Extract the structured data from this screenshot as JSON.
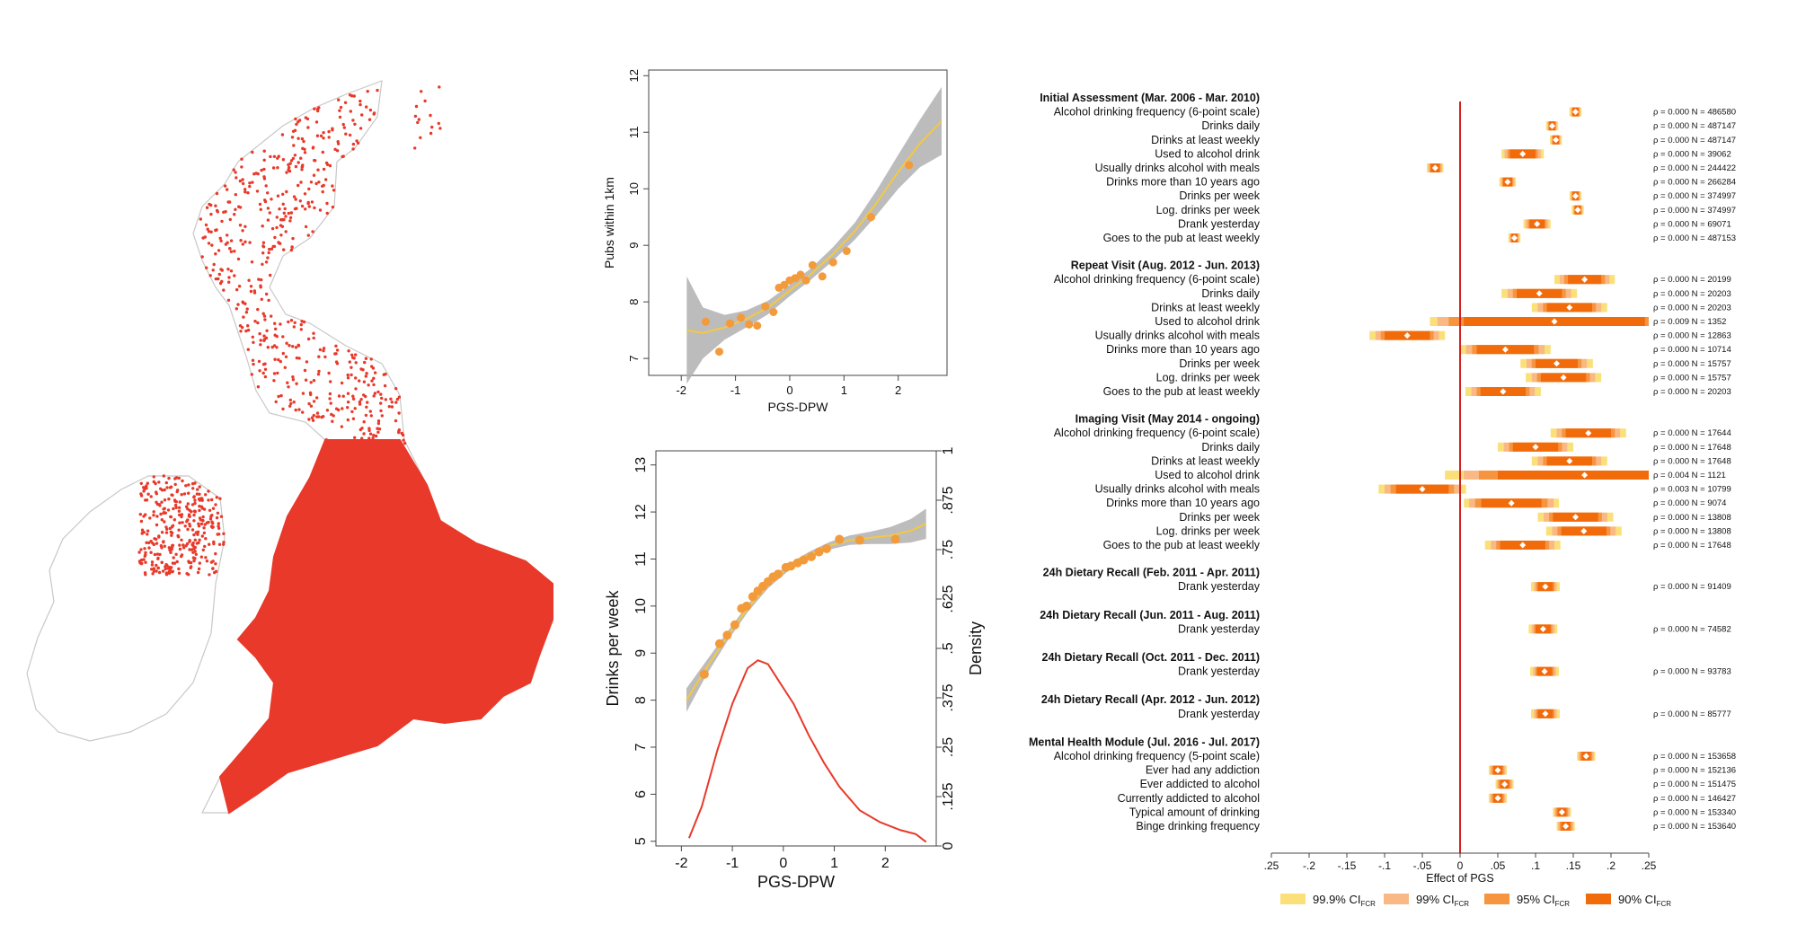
{
  "colors": {
    "map_dots": "#e8392a",
    "map_outline": "#c8c8c8",
    "scatter_points": "#f39a3a",
    "fit_line": "#f4c842",
    "ci_band": "#b0b0b0",
    "density_line": "#e8392a",
    "zero_line": "#d62020",
    "ci_999": "#fbe07a",
    "ci_99": "#f9b884",
    "ci_95": "#f79440",
    "ci_90": "#f26b0b"
  },
  "chart_data": [
    {
      "id": "map",
      "type": "scatter",
      "title": "",
      "description_points": "geographic pub locations (synthetic)"
    },
    {
      "id": "pubs",
      "type": "scatter",
      "xlabel": "PGS-DPW",
      "ylabel": "Pubs within 1km",
      "xlim": [
        -2.6,
        2.9
      ],
      "ylim": [
        6.7,
        12.1
      ],
      "xticks": [
        -2,
        -1,
        0,
        1,
        2
      ],
      "yticks": [
        7,
        8,
        9,
        10,
        11,
        12
      ],
      "points": [
        {
          "x": -1.55,
          "y": 7.65
        },
        {
          "x": -1.3,
          "y": 7.12
        },
        {
          "x": -1.1,
          "y": 7.62
        },
        {
          "x": -0.9,
          "y": 7.72
        },
        {
          "x": -0.75,
          "y": 7.6
        },
        {
          "x": -0.6,
          "y": 7.58
        },
        {
          "x": -0.45,
          "y": 7.92
        },
        {
          "x": -0.3,
          "y": 7.82
        },
        {
          "x": -0.2,
          "y": 8.25
        },
        {
          "x": -0.1,
          "y": 8.3
        },
        {
          "x": 0.0,
          "y": 8.38
        },
        {
          "x": 0.1,
          "y": 8.42
        },
        {
          "x": 0.2,
          "y": 8.48
        },
        {
          "x": 0.3,
          "y": 8.38
        },
        {
          "x": 0.42,
          "y": 8.65
        },
        {
          "x": 0.6,
          "y": 8.45
        },
        {
          "x": 0.8,
          "y": 8.7
        },
        {
          "x": 1.05,
          "y": 8.9
        },
        {
          "x": 1.5,
          "y": 9.5
        },
        {
          "x": 2.2,
          "y": 10.42
        }
      ],
      "fit": [
        {
          "x": -1.9,
          "y": 7.5
        },
        {
          "x": -1.6,
          "y": 7.45
        },
        {
          "x": -1.2,
          "y": 7.55
        },
        {
          "x": -0.8,
          "y": 7.7
        },
        {
          "x": -0.4,
          "y": 7.9
        },
        {
          "x": 0.0,
          "y": 8.2
        },
        {
          "x": 0.4,
          "y": 8.5
        },
        {
          "x": 0.8,
          "y": 8.85
        },
        {
          "x": 1.2,
          "y": 9.25
        },
        {
          "x": 1.6,
          "y": 9.75
        },
        {
          "x": 2.0,
          "y": 10.3
        },
        {
          "x": 2.4,
          "y": 10.8
        },
        {
          "x": 2.8,
          "y": 11.2
        }
      ],
      "ci_halfwidth": [
        0.95,
        0.45,
        0.22,
        0.15,
        0.12,
        0.1,
        0.1,
        0.12,
        0.15,
        0.22,
        0.3,
        0.42,
        0.6
      ]
    },
    {
      "id": "drinks",
      "type": "scatter",
      "xlabel": "PGS-DPW",
      "ylabel": "Drinks per week",
      "y2label": "Density",
      "xlim": [
        -2.5,
        3.0
      ],
      "ylim": [
        4.9,
        13.3
      ],
      "xticks": [
        -2,
        -1,
        0,
        1,
        2
      ],
      "yticks": [
        5,
        6,
        7,
        8,
        9,
        10,
        11,
        12,
        13
      ],
      "y2ticks": [
        "0",
        ".125",
        ".25",
        ".375",
        ".5",
        ".625",
        ".75",
        ".875",
        "1"
      ],
      "points": [
        {
          "x": -1.55,
          "y": 8.55
        },
        {
          "x": -1.25,
          "y": 9.2
        },
        {
          "x": -1.1,
          "y": 9.38
        },
        {
          "x": -0.95,
          "y": 9.6
        },
        {
          "x": -0.82,
          "y": 9.95
        },
        {
          "x": -0.72,
          "y": 10.0
        },
        {
          "x": -0.6,
          "y": 10.2
        },
        {
          "x": -0.5,
          "y": 10.32
        },
        {
          "x": -0.4,
          "y": 10.42
        },
        {
          "x": -0.3,
          "y": 10.52
        },
        {
          "x": -0.2,
          "y": 10.62
        },
        {
          "x": -0.1,
          "y": 10.68
        },
        {
          "x": 0.05,
          "y": 10.82
        },
        {
          "x": 0.15,
          "y": 10.85
        },
        {
          "x": 0.28,
          "y": 10.92
        },
        {
          "x": 0.4,
          "y": 10.98
        },
        {
          "x": 0.55,
          "y": 11.05
        },
        {
          "x": 0.7,
          "y": 11.15
        },
        {
          "x": 0.85,
          "y": 11.22
        },
        {
          "x": 1.1,
          "y": 11.42
        },
        {
          "x": 1.5,
          "y": 11.4
        },
        {
          "x": 2.2,
          "y": 11.42
        }
      ],
      "fit": [
        {
          "x": -1.9,
          "y": 8.0
        },
        {
          "x": -1.5,
          "y": 8.7
        },
        {
          "x": -1.1,
          "y": 9.35
        },
        {
          "x": -0.7,
          "y": 9.95
        },
        {
          "x": -0.3,
          "y": 10.45
        },
        {
          "x": 0.1,
          "y": 10.82
        },
        {
          "x": 0.5,
          "y": 11.08
        },
        {
          "x": 0.9,
          "y": 11.28
        },
        {
          "x": 1.3,
          "y": 11.4
        },
        {
          "x": 1.7,
          "y": 11.45
        },
        {
          "x": 2.1,
          "y": 11.5
        },
        {
          "x": 2.5,
          "y": 11.6
        },
        {
          "x": 2.8,
          "y": 11.75
        }
      ],
      "ci_halfwidth": [
        0.25,
        0.15,
        0.1,
        0.08,
        0.07,
        0.07,
        0.07,
        0.08,
        0.1,
        0.13,
        0.18,
        0.25,
        0.32
      ],
      "density": [
        {
          "x": -1.85,
          "y": 0.02
        },
        {
          "x": -1.6,
          "y": 0.1
        },
        {
          "x": -1.3,
          "y": 0.24
        },
        {
          "x": -1.0,
          "y": 0.36
        },
        {
          "x": -0.7,
          "y": 0.45
        },
        {
          "x": -0.5,
          "y": 0.47
        },
        {
          "x": -0.3,
          "y": 0.46
        },
        {
          "x": -0.1,
          "y": 0.42
        },
        {
          "x": 0.2,
          "y": 0.36
        },
        {
          "x": 0.5,
          "y": 0.28
        },
        {
          "x": 0.8,
          "y": 0.21
        },
        {
          "x": 1.1,
          "y": 0.15
        },
        {
          "x": 1.5,
          "y": 0.09
        },
        {
          "x": 1.9,
          "y": 0.06
        },
        {
          "x": 2.3,
          "y": 0.04
        },
        {
          "x": 2.6,
          "y": 0.03
        },
        {
          "x": 2.8,
          "y": 0.01
        }
      ]
    },
    {
      "id": "forest",
      "type": "scatter",
      "xlabel": "Effect of PGS",
      "xlim": [
        -0.25,
        0.25
      ],
      "xticks": [
        ".25",
        "-.2",
        "-.15",
        "-.1",
        "-.05",
        "0",
        ".05",
        ".1",
        ".15",
        ".2",
        ".25"
      ],
      "legend": [
        "99.9% CI",
        "99% CI",
        "95% CI",
        "90% CI"
      ],
      "legend_sub": "FCR",
      "groups": [
        {
          "header": "Initial Assessment (Mar. 2006 - Mar. 2010)",
          "rows": [
            {
              "label": "Alcohol drinking frequency (6-point scale)",
              "est": 0.153,
              "h90": 0.004,
              "h95": 0.005,
              "h99": 0.006,
              "h999": 0.008,
              "stat": "ρ = 0.000   N = 486580"
            },
            {
              "label": "Drinks daily",
              "est": 0.122,
              "h90": 0.004,
              "h95": 0.005,
              "h99": 0.006,
              "h999": 0.008,
              "stat": "ρ = 0.000   N = 487147"
            },
            {
              "label": "Drinks at least weekly",
              "est": 0.127,
              "h90": 0.004,
              "h95": 0.005,
              "h99": 0.006,
              "h999": 0.008,
              "stat": "ρ = 0.000   N = 487147"
            },
            {
              "label": "Used to alcohol drink",
              "est": 0.083,
              "h90": 0.017,
              "h95": 0.02,
              "h99": 0.024,
              "h999": 0.028,
              "stat": "ρ = 0.000   N = 39062"
            },
            {
              "label": "Usually drinks alcohol with meals",
              "est": -0.033,
              "h90": 0.006,
              "h95": 0.007,
              "h99": 0.009,
              "h999": 0.011,
              "stat": "ρ = 0.000   N = 244422"
            },
            {
              "label": "Drinks more than 10 years ago",
              "est": 0.063,
              "h90": 0.006,
              "h95": 0.007,
              "h99": 0.009,
              "h999": 0.011,
              "stat": "ρ = 0.000   N = 266284"
            },
            {
              "label": "Drinks per week",
              "est": 0.153,
              "h90": 0.004,
              "h95": 0.005,
              "h99": 0.006,
              "h999": 0.008,
              "stat": "ρ = 0.000   N = 374997"
            },
            {
              "label": "Log. drinks per week",
              "est": 0.156,
              "h90": 0.004,
              "h95": 0.005,
              "h99": 0.006,
              "h999": 0.008,
              "stat": "ρ = 0.000   N = 374997"
            },
            {
              "label": "Drank yesterday",
              "est": 0.102,
              "h90": 0.01,
              "h95": 0.012,
              "h99": 0.015,
              "h999": 0.018,
              "stat": "ρ = 0.000   N = 69071"
            },
            {
              "label": "Goes to the pub at least weekly",
              "est": 0.072,
              "h90": 0.004,
              "h95": 0.005,
              "h99": 0.006,
              "h999": 0.008,
              "stat": "ρ = 0.000   N = 487153"
            }
          ]
        },
        {
          "header": "Repeat Visit (Aug. 2012 - Jun. 2013)",
          "rows": [
            {
              "label": "Alcohol drinking frequency (6-point scale)",
              "est": 0.165,
              "h90": 0.022,
              "h95": 0.027,
              "h99": 0.033,
              "h999": 0.04,
              "stat": "ρ = 0.000   N = 20199"
            },
            {
              "label": "Drinks daily",
              "est": 0.105,
              "h90": 0.03,
              "h95": 0.035,
              "h99": 0.042,
              "h999": 0.05,
              "stat": "ρ = 0.000   N = 20203"
            },
            {
              "label": "Drinks at least weekly",
              "est": 0.145,
              "h90": 0.03,
              "h95": 0.035,
              "h99": 0.042,
              "h999": 0.05,
              "stat": "ρ = 0.000   N = 20203"
            },
            {
              "label": "Used to alcohol drink",
              "est": 0.125,
              "h90": 0.12,
              "h95": 0.14,
              "h99": 0.155,
              "h999": 0.165,
              "stat": "ρ = 0.009   N = 1352"
            },
            {
              "label": "Usually drinks alcohol with meals",
              "est": -0.07,
              "h90": 0.03,
              "h95": 0.035,
              "h99": 0.042,
              "h999": 0.05,
              "stat": "ρ = 0.000   N = 12863"
            },
            {
              "label": "Drinks more than 10 years ago",
              "est": 0.06,
              "h90": 0.038,
              "h95": 0.044,
              "h99": 0.052,
              "h999": 0.06,
              "stat": "ρ = 0.000   N = 10714"
            },
            {
              "label": "Drinks per week",
              "est": 0.128,
              "h90": 0.028,
              "h95": 0.033,
              "h99": 0.04,
              "h999": 0.048,
              "stat": "ρ = 0.000   N = 15757"
            },
            {
              "label": "Log. drinks per week",
              "est": 0.137,
              "h90": 0.03,
              "h95": 0.035,
              "h99": 0.042,
              "h999": 0.05,
              "stat": "ρ = 0.000   N = 15757"
            },
            {
              "label": "Goes to the pub at least weekly",
              "est": 0.057,
              "h90": 0.03,
              "h95": 0.035,
              "h99": 0.042,
              "h999": 0.05,
              "stat": "ρ = 0.000   N = 20203"
            }
          ]
        },
        {
          "header": "Imaging Visit (May 2014 - ongoing)",
          "rows": [
            {
              "label": "Alcohol drinking frequency (6-point scale)",
              "est": 0.17,
              "h90": 0.03,
              "h95": 0.035,
              "h99": 0.042,
              "h999": 0.05,
              "stat": "ρ = 0.000   N = 17644"
            },
            {
              "label": "Drinks daily",
              "est": 0.1,
              "h90": 0.03,
              "h95": 0.035,
              "h99": 0.042,
              "h999": 0.05,
              "stat": "ρ = 0.000   N = 17648"
            },
            {
              "label": "Drinks at least weekly",
              "est": 0.145,
              "h90": 0.03,
              "h95": 0.035,
              "h99": 0.042,
              "h999": 0.05,
              "stat": "ρ = 0.000   N = 17648"
            },
            {
              "label": "Used to alcohol drink",
              "est": 0.165,
              "h90": 0.115,
              "h95": 0.14,
              "h99": 0.16,
              "h999": 0.185,
              "stat": "ρ = 0.004   N = 1121"
            },
            {
              "label": "Usually drinks alcohol with meals",
              "est": -0.05,
              "h90": 0.035,
              "h95": 0.042,
              "h99": 0.05,
              "h999": 0.058,
              "stat": "ρ = 0.003   N = 10799"
            },
            {
              "label": "Drinks more than 10 years ago",
              "est": 0.068,
              "h90": 0.04,
              "h95": 0.048,
              "h99": 0.056,
              "h999": 0.063,
              "stat": "ρ = 0.000   N = 9074"
            },
            {
              "label": "Drinks per week",
              "est": 0.153,
              "h90": 0.03,
              "h95": 0.035,
              "h99": 0.042,
              "h999": 0.05,
              "stat": "ρ = 0.000   N = 13808"
            },
            {
              "label": "Log. drinks per week",
              "est": 0.164,
              "h90": 0.03,
              "h95": 0.035,
              "h99": 0.042,
              "h999": 0.05,
              "stat": "ρ = 0.000   N = 13808"
            },
            {
              "label": "Goes to the pub at least weekly",
              "est": 0.083,
              "h90": 0.03,
              "h95": 0.035,
              "h99": 0.042,
              "h999": 0.05,
              "stat": "ρ = 0.000   N = 17648"
            }
          ]
        },
        {
          "header": "24h Dietary Recall (Feb. 2011 - Apr. 2011)",
          "rows": [
            {
              "label": "Drank yesterday",
              "est": 0.113,
              "h90": 0.01,
              "h95": 0.012,
              "h99": 0.015,
              "h999": 0.019,
              "stat": "ρ = 0.000   N = 91409"
            }
          ]
        },
        {
          "header": "24h Dietary Recall (Jun. 2011 - Aug. 2011)",
          "rows": [
            {
              "label": "Drank yesterday",
              "est": 0.11,
              "h90": 0.01,
              "h95": 0.012,
              "h99": 0.015,
              "h999": 0.019,
              "stat": "ρ = 0.000   N = 74582"
            }
          ]
        },
        {
          "header": "24h Dietary Recall (Oct. 2011 - Dec. 2011)",
          "rows": [
            {
              "label": "Drank yesterday",
              "est": 0.112,
              "h90": 0.01,
              "h95": 0.012,
              "h99": 0.015,
              "h999": 0.019,
              "stat": "ρ = 0.000   N = 93783"
            }
          ]
        },
        {
          "header": "24h Dietary Recall (Apr. 2012 - Jun. 2012)",
          "rows": [
            {
              "label": "Drank yesterday",
              "est": 0.113,
              "h90": 0.01,
              "h95": 0.012,
              "h99": 0.015,
              "h999": 0.019,
              "stat": "ρ = 0.000   N = 85777"
            }
          ]
        },
        {
          "header": "Mental Health Module (Jul. 2016 - Jul. 2017)",
          "rows": [
            {
              "label": "Alcohol drinking frequency (5-point scale)",
              "est": 0.167,
              "h90": 0.006,
              "h95": 0.008,
              "h99": 0.01,
              "h999": 0.012,
              "stat": "ρ = 0.000   N = 153658"
            },
            {
              "label": "Ever had any addiction",
              "est": 0.05,
              "h90": 0.006,
              "h95": 0.008,
              "h99": 0.01,
              "h999": 0.012,
              "stat": "ρ = 0.000   N = 152136"
            },
            {
              "label": "Ever addicted to alcohol",
              "est": 0.059,
              "h90": 0.006,
              "h95": 0.008,
              "h99": 0.01,
              "h999": 0.012,
              "stat": "ρ = 0.000   N = 151475"
            },
            {
              "label": "Currently addicted to alcohol",
              "est": 0.05,
              "h90": 0.006,
              "h95": 0.008,
              "h99": 0.01,
              "h999": 0.012,
              "stat": "ρ = 0.000   N = 146427"
            },
            {
              "label": "Typical amount of drinking",
              "est": 0.135,
              "h90": 0.006,
              "h95": 0.008,
              "h99": 0.01,
              "h999": 0.012,
              "stat": "ρ = 0.000   N = 153340"
            },
            {
              "label": "Binge drinking frequency",
              "est": 0.14,
              "h90": 0.006,
              "h95": 0.008,
              "h99": 0.01,
              "h999": 0.012,
              "stat": "ρ = 0.000   N = 153640"
            }
          ]
        }
      ]
    }
  ]
}
